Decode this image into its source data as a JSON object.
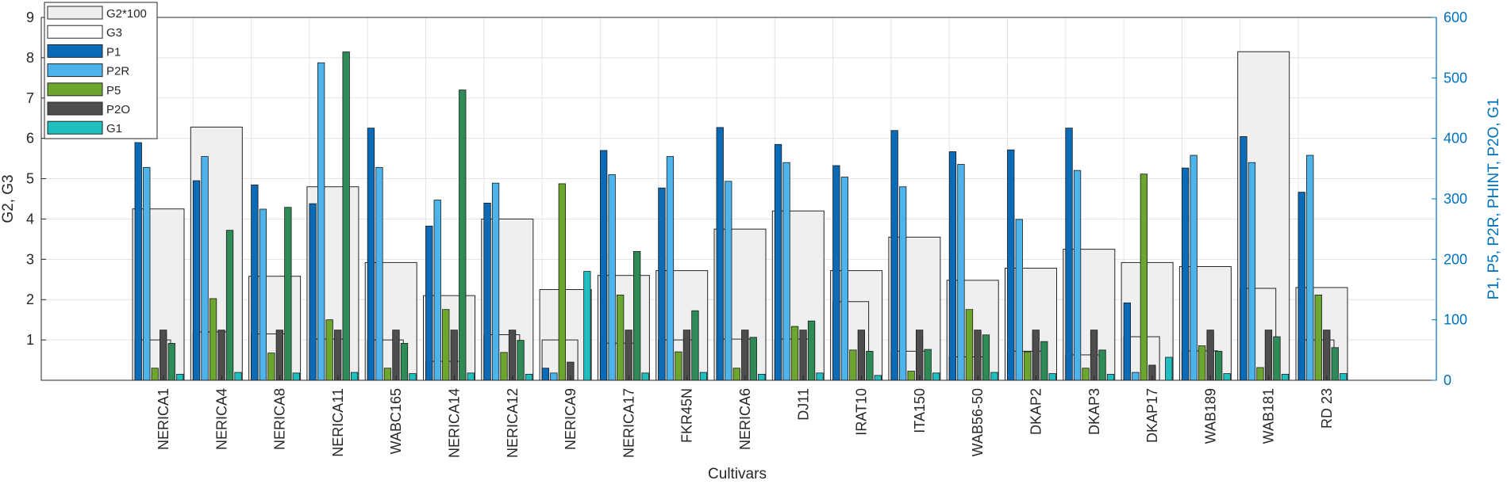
{
  "chart_data": {
    "type": "bar",
    "xlabel": "Cultivars",
    "ylabel_left": "G2, G3",
    "ylabel_right": "P1, P5, P2R, PHINT, P2O, G1",
    "ylim_left": [
      0,
      9
    ],
    "ylim_right": [
      0,
      600
    ],
    "yticks_left": [
      1,
      2,
      3,
      4,
      5,
      6,
      7,
      8,
      9
    ],
    "yticks_right": [
      0,
      100,
      200,
      300,
      400,
      500,
      600
    ],
    "grid": true,
    "legend_position": "top-left",
    "categories": [
      "NERICA1",
      "NERICA4",
      "NERICA8",
      "NERICA11",
      "WABC165",
      "NERICA14",
      "NERICA12",
      "NERICA9",
      "NERICA17",
      "FKR45N",
      "NERICA6",
      "DJ11",
      "IRAT10",
      "ITA150",
      "WAB56-50",
      "DKAP2",
      "DKAP3",
      "DKAP17",
      "WAB189",
      "WAB181",
      "RD 23"
    ],
    "left_axis_series": [
      {
        "name": "G2*100",
        "color": "#efefef",
        "values": [
          4.25,
          6.28,
          2.58,
          4.8,
          2.92,
          2.1,
          4.0,
          2.25,
          2.6,
          2.72,
          3.75,
          4.2,
          2.72,
          3.55,
          2.48,
          2.78,
          3.25,
          2.92,
          2.82,
          8.15,
          2.3
        ]
      },
      {
        "name": "G3",
        "color": "#ffffff",
        "values": [
          1.0,
          1.2,
          1.15,
          1.02,
          1.0,
          0.47,
          1.13,
          1.0,
          0.92,
          1.0,
          1.02,
          1.02,
          1.95,
          0.72,
          0.58,
          0.72,
          0.63,
          1.08,
          0.73,
          2.28,
          1.0
        ]
      }
    ],
    "right_axis_series": [
      {
        "name": "P1",
        "color": "#0b6bb7",
        "values": [
          393,
          330,
          323,
          292,
          417,
          255,
          293,
          20,
          380,
          318,
          418,
          390,
          355,
          413,
          378,
          381,
          417,
          128,
          351,
          403,
          311
        ]
      },
      {
        "name": "P2R",
        "color": "#4cb4ea",
        "values": [
          352,
          370,
          283,
          525,
          352,
          298,
          326,
          12,
          340,
          370,
          329,
          360,
          336,
          320,
          357,
          266,
          347,
          13,
          372,
          360,
          372
        ]
      },
      {
        "name": "P5",
        "color": "#6da62e",
        "values": [
          20,
          135,
          45,
          100,
          20,
          117,
          46,
          325,
          141,
          47,
          20,
          89,
          50,
          15,
          117,
          47,
          20,
          341,
          57,
          21,
          141
        ]
      },
      {
        "name": "P2O",
        "color": "#4d4d4d",
        "values": [
          83,
          83,
          83,
          83,
          83,
          83,
          83,
          30,
          83,
          83,
          83,
          83,
          83,
          83,
          83,
          83,
          83,
          25,
          83,
          83,
          83
        ]
      },
      {
        "name": "PHINT",
        "color": "#2e8b57",
        "values": [
          61,
          248,
          286,
          543,
          61,
          480,
          66,
          null,
          213,
          115,
          71,
          98,
          48,
          51,
          75,
          64,
          50,
          null,
          48,
          72,
          54
        ]
      },
      {
        "name": "G1",
        "color": "#1fbfbf",
        "values": [
          10,
          13,
          12,
          13,
          11,
          12,
          10,
          180,
          12,
          13,
          10,
          12,
          8,
          12,
          13,
          11,
          10,
          38,
          11,
          10,
          11
        ]
      }
    ],
    "legend": [
      "G2*100",
      "G3",
      "P1",
      "P2R",
      "P5",
      "P2O",
      "G1"
    ]
  }
}
